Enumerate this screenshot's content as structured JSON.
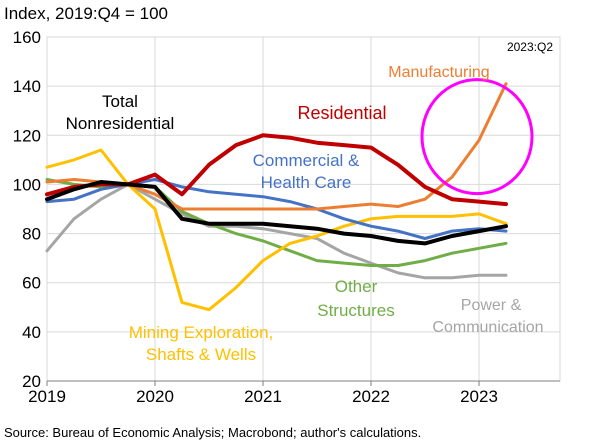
{
  "chart_data": {
    "type": "line",
    "ylabel": "Index, 2019:Q4 = 100",
    "corner_note": "2023:Q2",
    "source": "Source: Bureau of Economic Analysis; Macrobond; author's calculations.",
    "xlim": [
      2019.0,
      2023.75
    ],
    "ylim": [
      20,
      160
    ],
    "y_ticks": [
      "20",
      "40",
      "60",
      "80",
      "100",
      "120",
      "140",
      "160"
    ],
    "x_ticks": [
      {
        "value": 2019,
        "label": "2019"
      },
      {
        "value": 2020,
        "label": "2020"
      },
      {
        "value": 2021,
        "label": "2021"
      },
      {
        "value": 2022,
        "label": "2022"
      },
      {
        "value": 2023,
        "label": "2023"
      }
    ],
    "grid": true,
    "x": [
      2019.0,
      2019.25,
      2019.5,
      2019.75,
      2020.0,
      2020.25,
      2020.5,
      2020.75,
      2021.0,
      2021.25,
      2021.5,
      2021.75,
      2022.0,
      2022.25,
      2022.5,
      2022.75,
      2023.0,
      2023.25
    ],
    "series": [
      {
        "name": "Total Nonresidential",
        "color": "#000000",
        "width": 4,
        "values": [
          94,
          98,
          101,
          100,
          99,
          86,
          84,
          84,
          84,
          83,
          82,
          80,
          79,
          77,
          76,
          79,
          81,
          83
        ]
      },
      {
        "name": "Residential",
        "color": "#c00000",
        "width": 4,
        "values": [
          96,
          99,
          100,
          100,
          104,
          96,
          108,
          116,
          120,
          119,
          117,
          116,
          115,
          108,
          99,
          94,
          93,
          92
        ]
      },
      {
        "name": "Commercial & Health Care",
        "color": "#4472c4",
        "width": 3,
        "values": [
          93,
          94,
          98,
          100,
          102,
          99,
          97,
          96,
          95,
          93,
          90,
          86,
          83,
          81,
          78,
          81,
          82,
          81
        ]
      },
      {
        "name": "Manufacturing",
        "color": "#ed7d31",
        "width": 3,
        "values": [
          101,
          102,
          101,
          100,
          96,
          90,
          90,
          90,
          90,
          90,
          90,
          91,
          92,
          91,
          94,
          103,
          118,
          141
        ]
      },
      {
        "name": "Mining Exploration, Shafts & Wells",
        "color": "#ffc000",
        "width": 3,
        "values": [
          107,
          110,
          114,
          100,
          90,
          52,
          49,
          58,
          69,
          76,
          79,
          83,
          86,
          87,
          87,
          87,
          88,
          84
        ]
      },
      {
        "name": "Other Structures",
        "color": "#70ad47",
        "width": 3,
        "values": [
          102,
          100,
          99,
          100,
          99,
          89,
          84,
          80,
          77,
          73,
          69,
          68,
          67,
          67,
          69,
          72,
          74,
          76
        ]
      },
      {
        "name": "Power & Communication",
        "color": "#a5a5a5",
        "width": 3,
        "values": [
          73,
          86,
          94,
          100,
          94,
          88,
          83,
          83,
          82,
          80,
          78,
          72,
          68,
          64,
          62,
          62,
          63,
          63
        ]
      }
    ]
  },
  "labels": {
    "total": [
      "Total",
      "Nonresidential"
    ],
    "residential": [
      "Residential"
    ],
    "commercial": [
      "Commercial &",
      "Health Care"
    ],
    "manufacturing": [
      "Manufacturing"
    ],
    "mining": [
      "Mining Exploration,",
      "Shafts & Wells"
    ],
    "other": [
      "Other",
      "Structures"
    ],
    "power": [
      "Power &",
      "Communication"
    ]
  },
  "highlight": {
    "color": "#ff00ff",
    "center_x": 2023.0,
    "center_y": 117
  }
}
